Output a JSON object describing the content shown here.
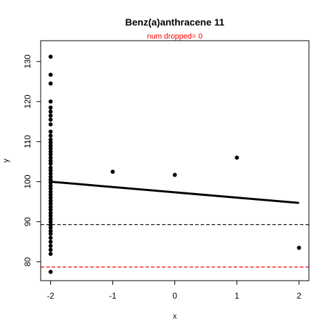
{
  "chart_data": {
    "type": "scatter",
    "title": "Benz(a)anthracene 11",
    "subtitle": "num dropped= 0",
    "xlabel": "x",
    "ylabel": "y",
    "xlim": [
      -2.16,
      2.16
    ],
    "ylim": [
      75.3,
      135.2
    ],
    "x_ticks": [
      -2,
      -1,
      0,
      1,
      2
    ],
    "x_tick_labels": [
      "-2",
      "-1",
      "0",
      "1",
      "2"
    ],
    "y_ticks": [
      80,
      90,
      100,
      110,
      120,
      130
    ],
    "y_tick_labels": [
      "80",
      "90",
      "100",
      "110",
      "120",
      "130"
    ],
    "grid": false,
    "colors": {
      "points": "#000000",
      "fit_line": "#000000",
      "black_dashed": "#000000",
      "red_dashed": "#ff0000",
      "subtitle": "#ff0000"
    },
    "points": [
      {
        "x": -2,
        "y": 131.2
      },
      {
        "x": -2,
        "y": 126.7
      },
      {
        "x": -2,
        "y": 124.5
      },
      {
        "x": -2,
        "y": 120.0
      },
      {
        "x": -2,
        "y": 118.5
      },
      {
        "x": -2,
        "y": 117.5
      },
      {
        "x": -2,
        "y": 116.5
      },
      {
        "x": -2,
        "y": 115.5
      },
      {
        "x": -2,
        "y": 114.3
      },
      {
        "x": -2,
        "y": 112.5
      },
      {
        "x": -2,
        "y": 111.5
      },
      {
        "x": -2,
        "y": 110.5
      },
      {
        "x": -2,
        "y": 109.8
      },
      {
        "x": -2,
        "y": 109.0
      },
      {
        "x": -2,
        "y": 108.3
      },
      {
        "x": -2,
        "y": 107.5
      },
      {
        "x": -2,
        "y": 106.8
      },
      {
        "x": -2,
        "y": 106.0
      },
      {
        "x": -2,
        "y": 105.2
      },
      {
        "x": -2,
        "y": 104.5
      },
      {
        "x": -2,
        "y": 103.5
      },
      {
        "x": -2,
        "y": 102.8
      },
      {
        "x": -2,
        "y": 102.0
      },
      {
        "x": -2,
        "y": 101.2
      },
      {
        "x": -2,
        "y": 100.5
      },
      {
        "x": -2,
        "y": 99.8
      },
      {
        "x": -2,
        "y": 99.0
      },
      {
        "x": -2,
        "y": 98.3
      },
      {
        "x": -2,
        "y": 97.5
      },
      {
        "x": -2,
        "y": 96.8
      },
      {
        "x": -2,
        "y": 96.0
      },
      {
        "x": -2,
        "y": 95.2
      },
      {
        "x": -2,
        "y": 94.5
      },
      {
        "x": -2,
        "y": 93.7
      },
      {
        "x": -2,
        "y": 93.0
      },
      {
        "x": -2,
        "y": 92.2
      },
      {
        "x": -2,
        "y": 91.5
      },
      {
        "x": -2,
        "y": 90.7
      },
      {
        "x": -2,
        "y": 90.0
      },
      {
        "x": -2,
        "y": 89.2
      },
      {
        "x": -2,
        "y": 88.5
      },
      {
        "x": -2,
        "y": 87.7
      },
      {
        "x": -2,
        "y": 87.0
      },
      {
        "x": -2,
        "y": 86.0
      },
      {
        "x": -2,
        "y": 85.0
      },
      {
        "x": -2,
        "y": 84.0
      },
      {
        "x": -2,
        "y": 83.0
      },
      {
        "x": -2,
        "y": 82.0
      },
      {
        "x": -2,
        "y": 77.5
      },
      {
        "x": -1,
        "y": 102.5
      },
      {
        "x": 0,
        "y": 101.7
      },
      {
        "x": 1,
        "y": 106.0
      },
      {
        "x": 2,
        "y": 83.5
      }
    ],
    "fit_line": {
      "x": [
        -2,
        2
      ],
      "y": [
        100.0,
        94.7
      ]
    },
    "hlines": [
      {
        "y": 89.3,
        "color": "#000000",
        "style": "dashed"
      },
      {
        "y": 78.7,
        "color": "#ff0000",
        "style": "dashed"
      }
    ]
  }
}
